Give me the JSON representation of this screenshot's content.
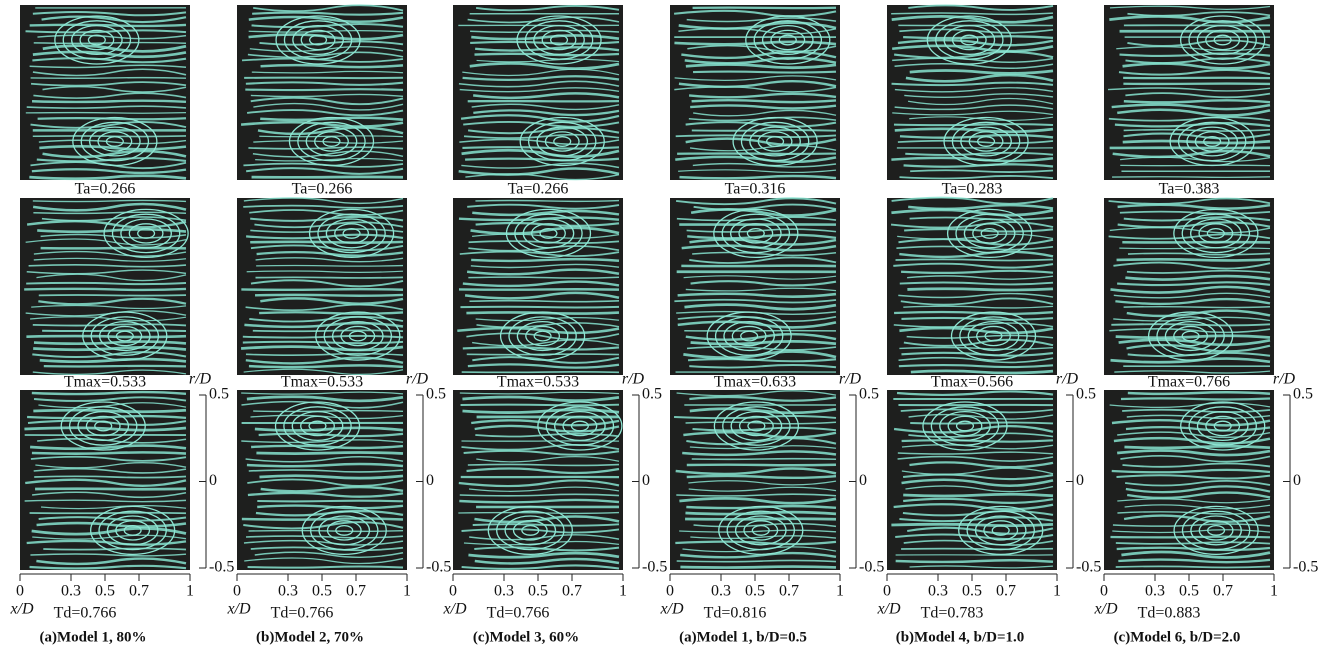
{
  "panels": [
    {
      "ta": "Ta=0.266",
      "tmax": "Tmax=0.533",
      "td": "Td=0.766",
      "caption": "(a)Model 1, 80%"
    },
    {
      "ta": "Ta=0.266",
      "tmax": "Tmax=0.533",
      "td": "Td=0.766",
      "caption": "(b)Model 2, 70%"
    },
    {
      "ta": "Ta=0.266",
      "tmax": "Tmax=0.533",
      "td": "Td=0.766",
      "caption": "(c)Model 3, 60%"
    },
    {
      "ta": "Ta=0.316",
      "tmax": "Tmax=0.633",
      "td": "Td=0.816",
      "caption": "(a)Model 1, b/D=0.5"
    },
    {
      "ta": "Ta=0.283",
      "tmax": "Tmax=0.566",
      "td": "Td=0.783",
      "caption": "(b)Model 4, b/D=1.0"
    },
    {
      "ta": "Ta=0.383",
      "tmax": "Tmax=0.766",
      "td": "Td=0.883",
      "caption": "(c)Model 6, b/D=2.0"
    }
  ],
  "axis": {
    "x_label": "x/D",
    "r_label": "r/D",
    "xticks": [
      0,
      0.3,
      0.5,
      0.7,
      1
    ],
    "rticks": [
      0.5,
      0,
      -0.5
    ]
  }
}
